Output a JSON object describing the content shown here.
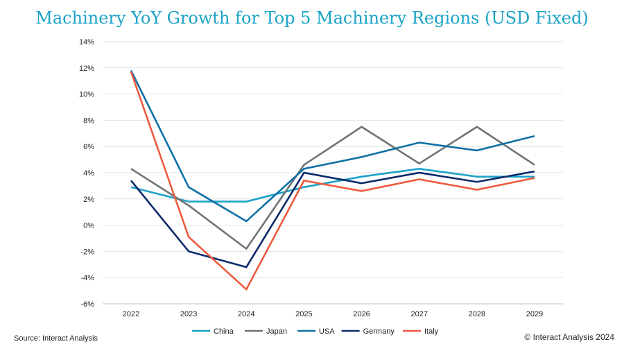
{
  "chart_data": {
    "type": "line",
    "title": "Machinery YoY Growth for Top 5 Machinery Regions (USD Fixed)",
    "x": [
      "2022",
      "2023",
      "2024",
      "2025",
      "2026",
      "2027",
      "2028",
      "2029"
    ],
    "y_ticks": [
      "14%",
      "12%",
      "10%",
      "8%",
      "6%",
      "4%",
      "2%",
      "0%",
      "-2%",
      "-4%",
      "-6%"
    ],
    "ylim": [
      -6,
      14
    ],
    "y_unit": "%",
    "grid": "horizontal",
    "legend_position": "bottom",
    "series": [
      {
        "name": "China",
        "color": "#1ba3c7",
        "values": [
          2.9,
          1.8,
          1.8,
          2.9,
          3.7,
          4.3,
          3.7,
          3.7
        ]
      },
      {
        "name": "Japan",
        "color": "#6d7478",
        "values": [
          4.3,
          1.5,
          -1.8,
          4.6,
          7.5,
          4.7,
          7.5,
          4.6
        ]
      },
      {
        "name": "USA",
        "color": "#0e70a5",
        "values": [
          11.8,
          2.9,
          0.3,
          4.3,
          5.2,
          6.3,
          5.7,
          6.8
        ]
      },
      {
        "name": "Germany",
        "color": "#0b2a6b",
        "values": [
          3.4,
          -2.0,
          -3.2,
          4.0,
          3.2,
          4.0,
          3.3,
          4.1
        ]
      },
      {
        "name": "Italy",
        "color": "#ee5a3e",
        "values": [
          11.7,
          -0.9,
          -4.9,
          3.4,
          2.6,
          3.5,
          2.7,
          3.6
        ]
      }
    ]
  },
  "footer": {
    "source": "Source: Interact Analysis",
    "copyright": "© Interact Analysis 2024"
  }
}
